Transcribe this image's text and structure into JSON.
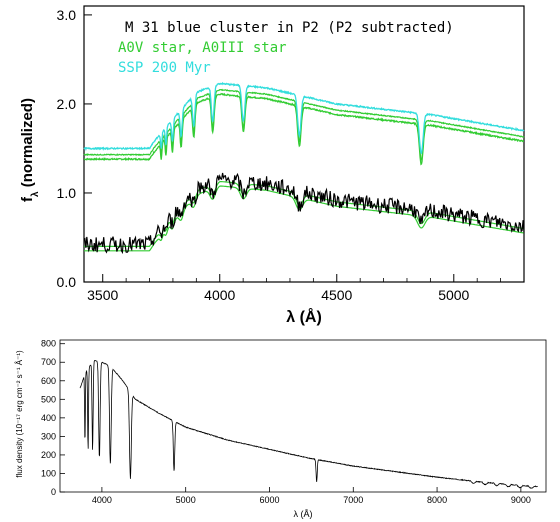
{
  "chart_data": [
    {
      "type": "line",
      "xlabel": "λ (Å)",
      "ylabel_main": "f",
      "ylabel_sub": "λ",
      "ylabel_rest": " (normalized)",
      "xlim": [
        3420,
        5300
      ],
      "ylim": [
        0.0,
        3.1
      ],
      "xticks": [
        3500,
        4000,
        4500,
        5000
      ],
      "yticks": [
        0.0,
        1.0,
        2.0,
        3.0
      ],
      "ytick_labels": [
        "0.0",
        "1.0",
        "2.0",
        "3.0"
      ],
      "legend": [
        {
          "text": "M 31 blue cluster in P2 (P2 subtracted)",
          "color": "#000000"
        },
        {
          "text": "A0V star, A0III star",
          "color": "#33cc33"
        },
        {
          "text": "SSP 200 Myr",
          "color": "#33dddd"
        }
      ],
      "series": [
        {
          "name": "A0V star, A0III star",
          "color": "#33cc33",
          "group": "upper",
          "offset": 0.96
        },
        {
          "name": "SSP 200 Myr",
          "color": "#33dddd",
          "group": "upper",
          "offset": 1.08
        },
        {
          "name": "M 31 blue cluster in P2 (P2 subtracted)",
          "color": "#000000",
          "group": "lower",
          "offset": 0.0
        }
      ],
      "continuum": [
        [
          3420,
          0.42
        ],
        [
          3700,
          0.42
        ],
        [
          3720,
          0.5
        ],
        [
          3800,
          0.75
        ],
        [
          3900,
          1.05
        ],
        [
          4000,
          1.15
        ],
        [
          4200,
          1.1
        ],
        [
          4500,
          0.92
        ],
        [
          4900,
          0.8
        ],
        [
          5300,
          0.62
        ]
      ],
      "absorption_lines": [
        [
          3750,
          0.18,
          4
        ],
        [
          3770,
          0.2,
          4
        ],
        [
          3798,
          0.25,
          5
        ],
        [
          3835,
          0.3,
          6
        ],
        [
          3889,
          0.35,
          7
        ],
        [
          3970,
          0.4,
          8
        ],
        [
          4101,
          0.4,
          9
        ],
        [
          4340,
          0.45,
          10
        ],
        [
          4861,
          0.45,
          11
        ]
      ]
    },
    {
      "type": "line",
      "xlabel": "λ (Å)",
      "ylabel": "flux density (10⁻¹⁷ erg cm⁻² s⁻¹ Å⁻¹)",
      "xlim": [
        3500,
        9300
      ],
      "ylim": [
        0,
        820
      ],
      "xticks": [
        4000,
        5000,
        6000,
        7000,
        8000,
        9000
      ],
      "yticks": [
        0,
        100,
        200,
        300,
        400,
        500,
        600,
        700,
        800
      ],
      "series": [
        {
          "name": "",
          "color": "#000000",
          "continuum": [
            [
              3740,
              560
            ],
            [
              3800,
              640
            ],
            [
              3900,
              710
            ],
            [
              4000,
              700
            ],
            [
              4100,
              680
            ],
            [
              4250,
              600
            ],
            [
              4400,
              500
            ],
            [
              4700,
              420
            ],
            [
              5000,
              350
            ],
            [
              5500,
              280
            ],
            [
              6000,
              230
            ],
            [
              6500,
              180
            ],
            [
              7000,
              140
            ],
            [
              7500,
              110
            ],
            [
              8000,
              80
            ],
            [
              8500,
              55
            ],
            [
              9000,
              35
            ],
            [
              9200,
              30
            ]
          ],
          "absorption_lines": [
            [
              3798,
              380,
              6
            ],
            [
              3835,
              440,
              7
            ],
            [
              3889,
              480,
              9
            ],
            [
              3970,
              520,
              12
            ],
            [
              4101,
              530,
              14
            ],
            [
              4340,
              470,
              15
            ],
            [
              4861,
              270,
              12
            ],
            [
              6563,
              120,
              10
            ]
          ]
        }
      ]
    }
  ]
}
